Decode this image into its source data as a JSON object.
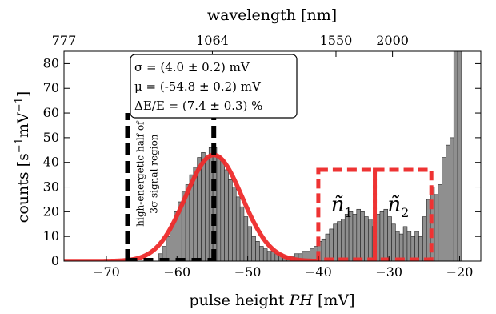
{
  "chart_data": {
    "type": "bar",
    "xlabel": "pulse height PH [mV]",
    "ylabel": "counts [s⁻¹mV⁻¹]",
    "top_xlabel": "wavelength [nm]",
    "xlim": [
      -76,
      -17
    ],
    "ylim": [
      0,
      85
    ],
    "xticks": [
      -70,
      -60,
      -50,
      -40,
      -30,
      -20
    ],
    "yticks": [
      0,
      10,
      20,
      30,
      40,
      50,
      60,
      70,
      80
    ],
    "top_ticks": [
      {
        "label": "777",
        "x": -76.0
      },
      {
        "label": "1064",
        "x": -55.0
      },
      {
        "label": "1550",
        "x": -37.5
      },
      {
        "label": "2000",
        "x": -29.5
      }
    ],
    "bin_width": 0.55,
    "histogram": {
      "x": [
        -62.35,
        -61.8,
        -61.25,
        -60.7,
        -60.15,
        -59.6,
        -59.05,
        -58.5,
        -57.95,
        -57.4,
        -56.85,
        -56.3,
        -55.75,
        -55.2,
        -54.65,
        -54.1,
        -53.55,
        -53.0,
        -52.45,
        -51.9,
        -51.35,
        -50.8,
        -50.25,
        -49.7,
        -49.15,
        -48.6,
        -48.05,
        -47.5,
        -46.95,
        -46.4,
        -45.85,
        -45.3,
        -44.75,
        -44.2,
        -43.65,
        -43.1,
        -42.55,
        -42.0,
        -41.45,
        -40.9,
        -40.35,
        -39.8,
        -39.25,
        -38.7,
        -38.15,
        -37.6,
        -37.05,
        -36.5,
        -35.95,
        -35.4,
        -34.85,
        -34.3,
        -33.75,
        -33.2,
        -32.65,
        -32.1,
        -31.55,
        -31.0,
        -30.45,
        -29.9,
        -29.35,
        -28.8,
        -28.25,
        -27.7,
        -27.15,
        -26.6,
        -26.05,
        -25.5,
        -24.95,
        -24.4,
        -23.85,
        -23.3,
        -22.75,
        -22.2,
        -21.65,
        -21.1,
        -20.55,
        -20.0
      ],
      "counts": [
        3,
        6,
        10,
        15,
        20,
        24,
        28,
        31,
        35,
        38,
        42,
        44,
        42,
        46,
        46,
        43,
        41,
        37,
        33,
        30,
        26,
        22,
        18,
        14,
        10,
        8,
        6,
        5,
        4,
        4,
        3,
        3,
        2,
        2,
        2,
        3,
        3,
        4,
        4,
        5,
        6,
        8,
        9,
        11,
        13,
        15,
        16,
        17,
        19,
        20,
        19,
        21,
        20,
        18,
        17,
        14,
        19,
        20,
        21,
        18,
        15,
        12,
        11,
        14,
        12,
        10,
        12,
        10,
        18,
        25,
        30,
        27,
        31,
        42,
        47,
        50,
        85,
        85
      ]
    },
    "gaussian_fit": {
      "name": "fit",
      "amplitude": 43,
      "mu": -54.8,
      "sigma": 4.0,
      "x_range": [
        -76,
        -40
      ]
    },
    "signal_region": {
      "label": "high-energetic half of 3σ signal region",
      "x_lines": [
        -67.0,
        -54.8
      ],
      "y_top": 60
    },
    "boxes": [
      {
        "label": "ñ",
        "sub": "1",
        "x": [
          -40.0,
          -32.0
        ],
        "y": [
          0,
          37
        ]
      },
      {
        "label": "ñ",
        "sub": "2",
        "x": [
          -32.0,
          -24.0
        ],
        "y": [
          0,
          37
        ]
      }
    ],
    "annotation": {
      "lines": [
        "σ = (4.0 ± 0.2) mV",
        "μ = (-54.8 ± 0.2) mV",
        "ΔE/E = (7.4 ± 0.3) %"
      ]
    },
    "colors": {
      "bar_fill": "#8f8f8f",
      "bar_stroke": "#222222",
      "fit": "#ee2b2b",
      "box": "#ee3333",
      "signal_lines": "#000000"
    }
  }
}
